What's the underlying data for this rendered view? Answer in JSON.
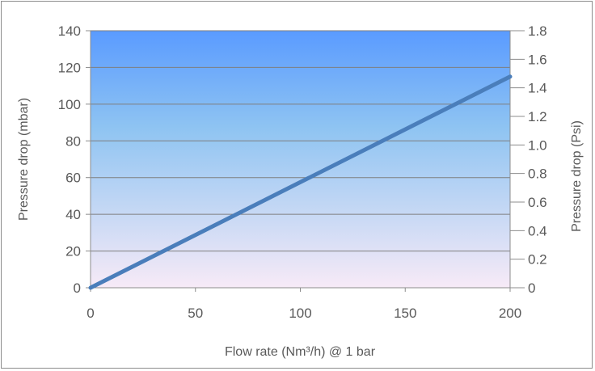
{
  "chart_data": {
    "type": "line",
    "xlabel": "Flow rate (Nm³/h) @ 1 bar",
    "ylabel": "Pressure drop (mbar)",
    "y2label": "Pressure drop (Psi)",
    "xlim": [
      0,
      200
    ],
    "ylim": [
      0,
      140
    ],
    "y2lim": [
      0,
      1.8
    ],
    "x_ticks": [
      "0",
      "50",
      "100",
      "150",
      "200"
    ],
    "y_ticks": [
      "0",
      "20",
      "40",
      "60",
      "80",
      "100",
      "120",
      "140"
    ],
    "y2_ticks": [
      "0",
      "0.2",
      "0.4",
      "0.6",
      "0.8",
      "1.0",
      "1.2",
      "1.4",
      "1.6",
      "1.8"
    ],
    "grid": true,
    "series": [
      {
        "x": [
          0,
          200
        ],
        "values": [
          0,
          115
        ]
      }
    ],
    "colors": {
      "line": "#4a7ebb",
      "grid": "#7f7f7f",
      "bg_top": "#5a9bff",
      "bg_mid": "#8fc4f2",
      "bg_bottom": "#f7eaf7"
    }
  }
}
